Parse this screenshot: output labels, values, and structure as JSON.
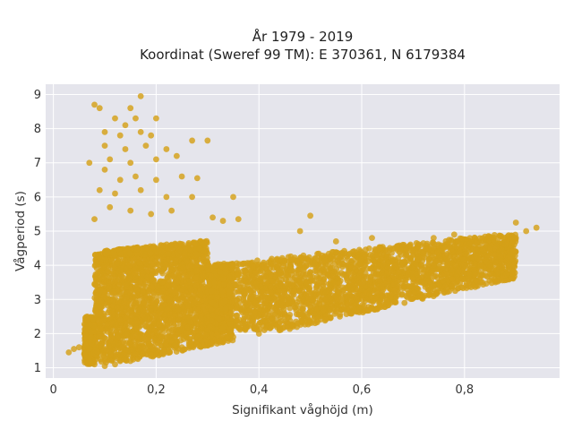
{
  "chart_data": {
    "type": "scatter",
    "title_line1": "År 1979 - 2019",
    "title_line2": "Koordinat (Sweref 99 TM): E 370361, N 6179384",
    "xlabel": "Signifikant våghöjd (m)",
    "ylabel": "Vågperiod (s)",
    "xlim": [
      -0.015,
      0.985
    ],
    "ylim": [
      0.7,
      9.3
    ],
    "x_ticks": [
      0,
      0.2,
      0.4,
      0.6,
      0.8
    ],
    "x_tick_labels": [
      "0",
      "0,2",
      "0,4",
      "0,6",
      "0,8"
    ],
    "y_ticks": [
      1,
      2,
      3,
      4,
      5,
      6,
      7,
      8,
      9
    ],
    "y_tick_labels": [
      "1",
      "2",
      "3",
      "4",
      "5",
      "6",
      "7",
      "8",
      "9"
    ],
    "grid": true,
    "marker_color": "#D4A017",
    "background_color": "#E5E5EC",
    "points": [
      {
        "x": 0.03,
        "y": 1.45
      },
      {
        "x": 0.04,
        "y": 1.55
      },
      {
        "x": 0.05,
        "y": 1.6
      },
      {
        "x": 0.06,
        "y": 1.4
      },
      {
        "x": 0.07,
        "y": 1.2
      },
      {
        "x": 0.08,
        "y": 1.1
      },
      {
        "x": 0.1,
        "y": 1.05
      },
      {
        "x": 0.12,
        "y": 1.1
      },
      {
        "x": 0.15,
        "y": 1.2
      },
      {
        "x": 0.2,
        "y": 1.4
      },
      {
        "x": 0.25,
        "y": 1.6
      },
      {
        "x": 0.3,
        "y": 1.75
      },
      {
        "x": 0.35,
        "y": 1.9
      },
      {
        "x": 0.4,
        "y": 2.0
      },
      {
        "x": 0.44,
        "y": 2.1
      },
      {
        "x": 0.46,
        "y": 2.2
      },
      {
        "x": 0.5,
        "y": 2.8
      },
      {
        "x": 0.6,
        "y": 3.3
      },
      {
        "x": 0.7,
        "y": 3.6
      },
      {
        "x": 0.8,
        "y": 4.0
      },
      {
        "x": 0.85,
        "y": 4.3
      },
      {
        "x": 0.88,
        "y": 4.6
      },
      {
        "x": 0.9,
        "y": 4.8
      },
      {
        "x": 0.92,
        "y": 5.0
      },
      {
        "x": 0.94,
        "y": 5.1
      },
      {
        "x": 0.9,
        "y": 5.25
      },
      {
        "x": 0.08,
        "y": 8.7
      },
      {
        "x": 0.09,
        "y": 8.6
      },
      {
        "x": 0.12,
        "y": 8.3
      },
      {
        "x": 0.14,
        "y": 8.1
      },
      {
        "x": 0.17,
        "y": 8.95
      },
      {
        "x": 0.15,
        "y": 8.6
      },
      {
        "x": 0.16,
        "y": 8.3
      },
      {
        "x": 0.2,
        "y": 8.3
      },
      {
        "x": 0.1,
        "y": 7.9
      },
      {
        "x": 0.13,
        "y": 7.8
      },
      {
        "x": 0.17,
        "y": 7.9
      },
      {
        "x": 0.19,
        "y": 7.8
      },
      {
        "x": 0.1,
        "y": 7.5
      },
      {
        "x": 0.14,
        "y": 7.4
      },
      {
        "x": 0.18,
        "y": 7.5
      },
      {
        "x": 0.22,
        "y": 7.4
      },
      {
        "x": 0.27,
        "y": 7.65
      },
      {
        "x": 0.3,
        "y": 7.65
      },
      {
        "x": 0.07,
        "y": 7.0
      },
      {
        "x": 0.11,
        "y": 7.1
      },
      {
        "x": 0.15,
        "y": 7.0
      },
      {
        "x": 0.2,
        "y": 7.1
      },
      {
        "x": 0.24,
        "y": 7.2
      },
      {
        "x": 0.1,
        "y": 6.8
      },
      {
        "x": 0.13,
        "y": 6.5
      },
      {
        "x": 0.16,
        "y": 6.6
      },
      {
        "x": 0.2,
        "y": 6.5
      },
      {
        "x": 0.25,
        "y": 6.6
      },
      {
        "x": 0.28,
        "y": 6.55
      },
      {
        "x": 0.09,
        "y": 6.2
      },
      {
        "x": 0.12,
        "y": 6.1
      },
      {
        "x": 0.17,
        "y": 6.2
      },
      {
        "x": 0.22,
        "y": 6.0
      },
      {
        "x": 0.27,
        "y": 6.0
      },
      {
        "x": 0.35,
        "y": 6.0
      },
      {
        "x": 0.08,
        "y": 5.35
      },
      {
        "x": 0.11,
        "y": 5.7
      },
      {
        "x": 0.15,
        "y": 5.6
      },
      {
        "x": 0.19,
        "y": 5.5
      },
      {
        "x": 0.23,
        "y": 5.6
      },
      {
        "x": 0.31,
        "y": 5.4
      },
      {
        "x": 0.33,
        "y": 5.3
      },
      {
        "x": 0.36,
        "y": 5.35
      },
      {
        "x": 0.5,
        "y": 5.45
      },
      {
        "x": 0.48,
        "y": 5.0
      },
      {
        "x": 0.55,
        "y": 4.7
      },
      {
        "x": 0.62,
        "y": 4.8
      },
      {
        "x": 0.68,
        "y": 4.6
      },
      {
        "x": 0.74,
        "y": 4.8
      },
      {
        "x": 0.78,
        "y": 4.9
      }
    ],
    "dense_regions": [
      {
        "x_min": 0.06,
        "x_max": 0.35,
        "y_min": 1.1,
        "y_max": 4.4,
        "count": 2600
      },
      {
        "x_min": 0.1,
        "x_max": 0.3,
        "y_min": 4.3,
        "y_max": 5.2,
        "count": 300
      },
      {
        "x_min": 0.3,
        "x_max": 0.9,
        "y_min": 2.1,
        "y_max": 4.9,
        "count": 2600
      }
    ]
  }
}
